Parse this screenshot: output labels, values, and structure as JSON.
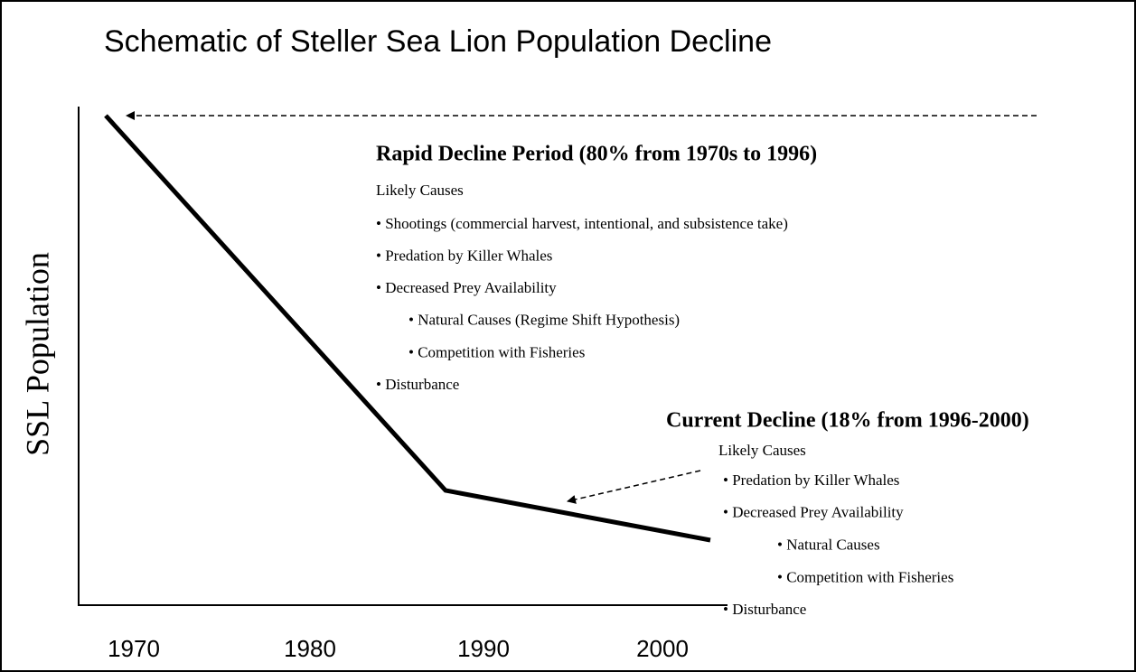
{
  "title": "Schematic of Steller Sea Lion Population Decline",
  "y_axis_label": "SSL Population",
  "x_axis_labels": [
    "1970",
    "1980",
    "1990",
    "2000"
  ],
  "annotations": [
    {
      "heading": "Rapid Decline Period (80% from 1970s to 1996)",
      "subheading": "Likely Causes",
      "items": [
        {
          "text": "• Shootings (commercial harvest, intentional, and subsistence take)",
          "subitems": []
        },
        {
          "text": "• Predation by Killer Whales",
          "subitems": []
        },
        {
          "text": "• Decreased Prey Availability",
          "subitems": [
            "• Natural Causes (Regime Shift Hypothesis)",
            "• Competition with Fisheries"
          ]
        },
        {
          "text": "• Disturbance",
          "subitems": []
        }
      ]
    },
    {
      "heading": "Current Decline (18% from 1996-2000)",
      "subheading": "Likely Causes",
      "items": [
        {
          "text": "• Predation by Killer Whales",
          "subitems": []
        },
        {
          "text": "• Decreased Prey Availability",
          "subitems": [
            "• Natural Causes",
            "• Competition with Fisheries"
          ]
        },
        {
          "text": "• Disturbance",
          "subitems": []
        }
      ]
    }
  ]
}
